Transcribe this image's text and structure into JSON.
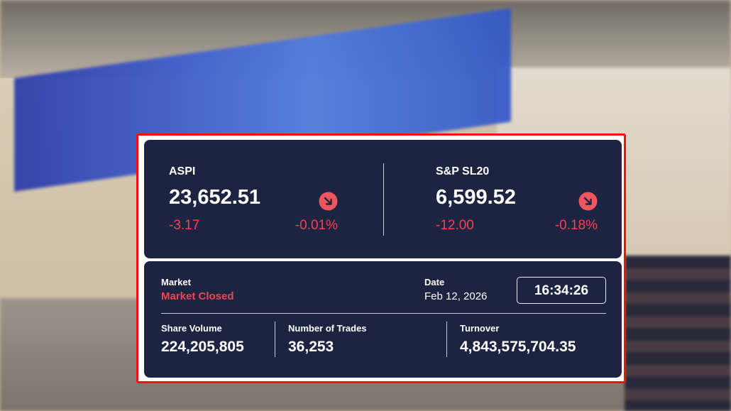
{
  "indices": [
    {
      "name": "ASPI",
      "value": "23,652.51",
      "change": "-3.17",
      "change_pct": "-0.01%"
    },
    {
      "name": "S&P SL20",
      "value": "6,599.52",
      "change": "-12.00",
      "change_pct": "-0.18%"
    }
  ],
  "market": {
    "label": "Market",
    "status": "Market Closed"
  },
  "date": {
    "label": "Date",
    "value": "Feb 12, 2026"
  },
  "time": "16:34:26",
  "stats": [
    {
      "label": "Share Volume",
      "value": "224,205,805"
    },
    {
      "label": "Number of Trades",
      "value": "36,253"
    },
    {
      "label": "Turnover",
      "value": "4,843,575,704.35"
    }
  ]
}
